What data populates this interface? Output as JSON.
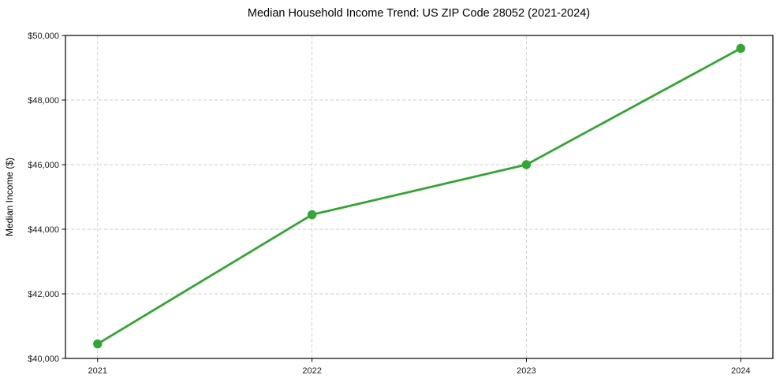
{
  "figure": {
    "title": "Median Household Income Trend: US ZIP Code 28052 (2021-2024)"
  },
  "chart_data": {
    "type": "line",
    "title": "Median Household Income Trend: US ZIP Code 28052 (2021-2024)",
    "categories": [
      "2021",
      "2022",
      "2023",
      "2024"
    ],
    "series": [
      {
        "name": "Median Household Income",
        "values": [
          40450,
          44450,
          46000,
          49600
        ],
        "color": "#33a532",
        "marker": "circle"
      }
    ],
    "xlabel": "",
    "ylabel": "Median Income ($)",
    "ylim": [
      40000,
      50000
    ],
    "yticks": [
      40000,
      42000,
      44000,
      46000,
      48000,
      50000
    ],
    "ytick_labels": [
      "$40,000",
      "$42,000",
      "$44,000",
      "$46,000",
      "$48,000",
      "$50,000"
    ],
    "grid": true,
    "grid_style": "dashed",
    "grid_color": "#cccccc",
    "axis_color": "#000000",
    "background": "#ffffff",
    "legend": "none"
  }
}
